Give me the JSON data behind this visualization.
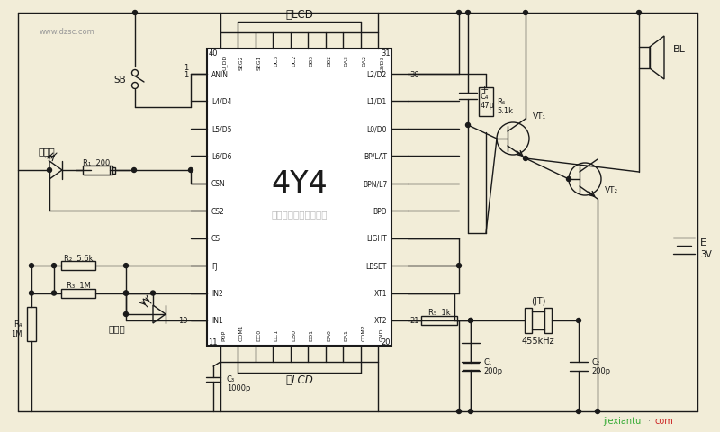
{
  "bg_color": "#f2edd8",
  "line_color": "#1a1a1a",
  "ic_label": "4Y4",
  "company_text": "杭州将睷科技有限公司",
  "left_pins": [
    "ANIN",
    "L4/D4",
    "L5/D5",
    "L6/D6",
    "CSN",
    "CS2",
    "CS",
    "FJ",
    "IN2",
    "IN1"
  ],
  "right_pins": [
    "L2/D2",
    "L1/D1",
    "L0/D0",
    "BP/LAT",
    "BPN/L7",
    "BPD",
    "LIGHT",
    "LBSET",
    "XT1",
    "XT2"
  ],
  "bottom_pins": [
    "POP",
    "COM1",
    "DC0",
    "DC1",
    "DB0",
    "DB1",
    "DA0",
    "DA1",
    "COM2",
    "GND"
  ],
  "top_pins": [
    "U_DD",
    "SEG2",
    "SEG1",
    "DC3",
    "DC2",
    "DB3",
    "DB2",
    "DA3",
    "DA2",
    "L3/D3"
  ]
}
